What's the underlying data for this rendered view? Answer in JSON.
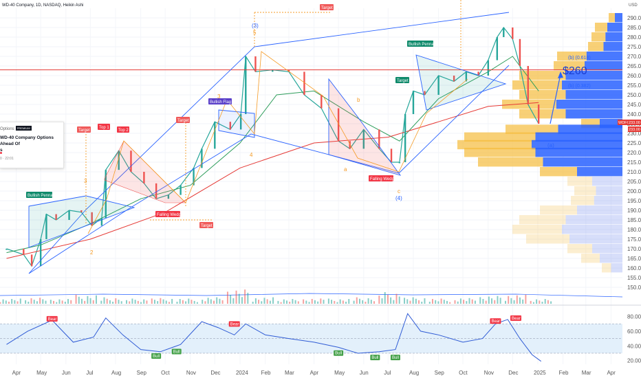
{
  "header": {
    "title": "WD-40 Company, 1D, NASDAQ, Heikin Ashi",
    "currency": "USD"
  },
  "price_label": {
    "ticker": "WDFC",
    "last": "233.00"
  },
  "news_card": {
    "source": "Options",
    "badge": "PREMIUM",
    "headline_line1": "WD-40 Company Options Ahead Of",
    "headline_line2": "s",
    "time": "0 · 22:01"
  },
  "colors": {
    "trend_blue": "#2962ff",
    "ma_red": "#e53935",
    "ma_green": "#2e9d5b",
    "up": "#26a69a",
    "down": "#ef5350",
    "target_tag": "#f05a5a",
    "bullish_tag": "#0f8a6b",
    "flag_tag": "#5a3fc9",
    "wedge_tag": "#f23645",
    "rsi_line": "#2f5bd5",
    "rsi_band": "#e3f0fb"
  },
  "chart_data": [
    {
      "type": "line",
      "name": "price",
      "yaxis_ticks": [
        150,
        155,
        160,
        165,
        170,
        175,
        180,
        185,
        190,
        195,
        200,
        205,
        210,
        215,
        220,
        225,
        230,
        235,
        240,
        245,
        250,
        255,
        260,
        265,
        270,
        275,
        280,
        285,
        290
      ],
      "xaxis_ticks": [
        "Apr",
        "May",
        "Jun",
        "Jul",
        "Aug",
        "Sep",
        "Oct",
        "Nov",
        "Dec",
        "2024",
        "Feb",
        "Mar",
        "Apr",
        "May",
        "Jun",
        "Jul",
        "Aug",
        "Sep",
        "Oct",
        "Nov",
        "Dec",
        "2025",
        "Feb",
        "Mar",
        "Apr"
      ],
      "ylim": [
        145,
        295
      ],
      "series": [
        {
          "values": [
            [
              "2023-03-20",
              170
            ],
            [
              "2023-04-10",
              167
            ],
            [
              "2023-04-20",
              161
            ],
            [
              "2023-05-01",
              175
            ],
            [
              "2023-05-08",
              188
            ],
            [
              "2023-05-20",
              185
            ],
            [
              "2023-06-05",
              190
            ],
            [
              "2023-06-20",
              189
            ],
            [
              "2023-07-03",
              182
            ],
            [
              "2023-07-15",
              186
            ],
            [
              "2023-07-20",
              211
            ],
            [
              "2023-08-05",
              221
            ],
            [
              "2023-08-20",
              210
            ],
            [
              "2023-09-05",
              204
            ],
            [
              "2023-09-20",
              196
            ],
            [
              "2023-10-05",
              198
            ],
            [
              "2023-10-20",
              203
            ],
            [
              "2023-11-05",
              212
            ],
            [
              "2023-11-15",
              222
            ],
            [
              "2023-12-01",
              236
            ],
            [
              "2023-12-20",
              232
            ],
            [
              "2024-01-02",
              240
            ],
            [
              "2024-01-08",
              270
            ],
            [
              "2024-01-20",
              262
            ],
            [
              "2024-02-10",
              263
            ],
            [
              "2024-03-01",
              262
            ],
            [
              "2024-03-20",
              250
            ],
            [
              "2024-04-10",
              243
            ],
            [
              "2024-05-01",
              226
            ],
            [
              "2024-05-15",
              222
            ],
            [
              "2024-06-01",
              232
            ],
            [
              "2024-06-20",
              222
            ],
            [
              "2024-07-05",
              215
            ],
            [
              "2024-07-15",
              215
            ],
            [
              "2024-07-22",
              240
            ],
            [
              "2024-08-01",
              252
            ],
            [
              "2024-08-15",
              250
            ],
            [
              "2024-09-01",
              260
            ],
            [
              "2024-09-20",
              257
            ],
            [
              "2024-10-05",
              262
            ],
            [
              "2024-10-20",
              260
            ],
            [
              "2024-11-01",
              268
            ],
            [
              "2024-11-12",
              280
            ],
            [
              "2024-11-20",
              285
            ],
            [
              "2024-12-01",
              279
            ],
            [
              "2024-12-10",
              265
            ],
            [
              "2024-12-20",
              245
            ],
            [
              "2025-01-02",
              235
            ]
          ]
        },
        {
          "values": [
            [
              "2023-03-20",
              168
            ],
            [
              "2023-05-01",
              172
            ],
            [
              "2023-07-01",
              183
            ],
            [
              "2023-09-01",
              196
            ],
            [
              "2023-11-01",
              203
            ],
            [
              "2024-01-01",
              225
            ],
            [
              "2024-02-15",
              250
            ],
            [
              "2024-04-01",
              252
            ],
            [
              "2024-06-01",
              236
            ],
            [
              "2024-07-15",
              226
            ],
            [
              "2024-09-01",
              248
            ],
            [
              "2024-11-01",
              262
            ],
            [
              "2024-12-01",
              270
            ],
            [
              "2025-01-02",
              252
            ]
          ]
        },
        {
          "values": [
            [
              "2023-03-20",
              165
            ],
            [
              "2023-07-01",
              175
            ],
            [
              "2023-10-01",
              189
            ],
            [
              "2024-01-01",
              212
            ],
            [
              "2024-04-01",
              225
            ],
            [
              "2024-07-01",
              228
            ],
            [
              "2024-09-01",
              236
            ],
            [
              "2024-11-01",
              244
            ],
            [
              "2025-01-02",
              246
            ]
          ]
        }
      ],
      "horizontal_level": 263
    },
    {
      "type": "bar",
      "name": "volume",
      "categories": [
        "Apr",
        "May",
        "Jun",
        "Jul",
        "Aug",
        "Sep",
        "Oct",
        "Nov",
        "Dec",
        "2024",
        "Feb",
        "Mar",
        "Apr",
        "May",
        "Jun",
        "Jul",
        "Aug",
        "Sep",
        "Oct",
        "Nov",
        "Dec",
        "2025"
      ],
      "values": [
        0.2,
        0.25,
        0.2,
        0.35,
        0.25,
        0.2,
        0.22,
        0.2,
        0.25,
        0.55,
        0.25,
        0.2,
        0.22,
        0.2,
        0.25,
        0.45,
        0.25,
        0.2,
        0.22,
        0.3,
        0.35,
        0.2
      ]
    },
    {
      "type": "line",
      "name": "rsi",
      "yaxis_ticks": [
        20,
        40,
        60,
        80
      ],
      "ylim": [
        15,
        88
      ],
      "band": [
        30,
        70
      ],
      "x": [
        "2023-03-20",
        "2023-04-15",
        "2023-05-15",
        "2023-06-10",
        "2023-07-05",
        "2023-07-20",
        "2023-08-10",
        "2023-09-01",
        "2023-09-25",
        "2023-10-20",
        "2023-11-15",
        "2023-12-05",
        "2023-12-25",
        "2024-01-08",
        "2024-02-01",
        "2024-03-01",
        "2024-04-01",
        "2024-05-01",
        "2024-05-25",
        "2024-06-20",
        "2024-07-10",
        "2024-07-25",
        "2024-08-10",
        "2024-09-01",
        "2024-10-01",
        "2024-10-25",
        "2024-11-10",
        "2024-11-25",
        "2024-12-10",
        "2024-12-25",
        "2025-01-05"
      ],
      "values": [
        42,
        60,
        75,
        45,
        52,
        78,
        55,
        35,
        32,
        42,
        73,
        65,
        55,
        70,
        55,
        50,
        45,
        38,
        30,
        32,
        35,
        84,
        60,
        55,
        45,
        50,
        70,
        76,
        50,
        28,
        19
      ]
    }
  ],
  "labels": {
    "targets": [
      "Target",
      "Target",
      "Target",
      "Target",
      "Target"
    ],
    "tops": [
      "Top 1",
      "Top 2"
    ],
    "bullish_pennants": [
      "Bullish Pennant",
      "Bullish Pennant"
    ],
    "bullish_flag": "Bullish Flag",
    "falling_wedges": [
      "Falling Wedge",
      "Falling Wedge"
    ],
    "price_target_big": "$260",
    "fib_labels": [
      "(b) (0.618)",
      "(b) (0.382)"
    ],
    "waves": [
      "(3)",
      "3",
      "5",
      "4",
      "3",
      "b",
      "a",
      "c",
      "(4)",
      "1",
      "2",
      "(a)"
    ],
    "rsi_bear": [
      "Bear",
      "Bear",
      "Bear",
      "Bear"
    ],
    "rsi_bull": [
      "Bull",
      "Bull",
      "Bull",
      "Bull",
      "Bull"
    ]
  }
}
